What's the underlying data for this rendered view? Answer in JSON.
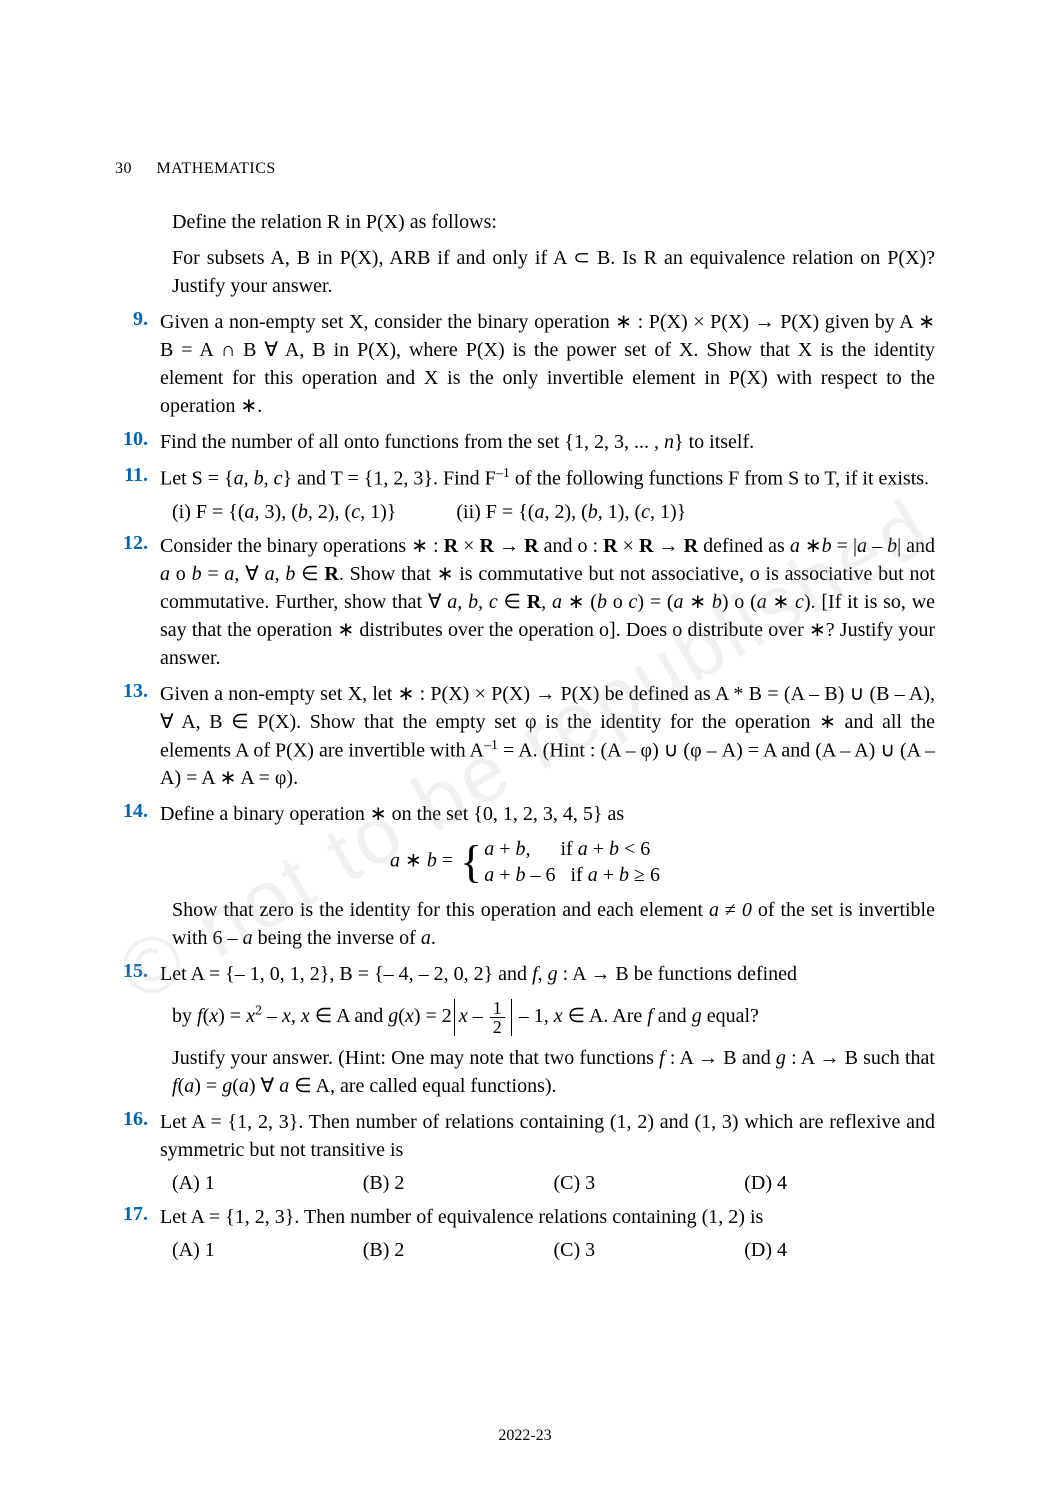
{
  "colors": {
    "question_number": "#0066b3",
    "body_text": "#000000",
    "background": "#ffffff",
    "watermark": "rgba(180,180,180,0.18)"
  },
  "typography": {
    "body_font": "Times New Roman",
    "body_size_pt": 15,
    "header_size_pt": 12,
    "line_height": 1.4
  },
  "header": {
    "page_number": "30",
    "chapter_title": "MATHEMATICS"
  },
  "intro_lines": {
    "l1": "Define the relation R in P(X) as follows:",
    "l2_html": "For subsets A, B in P(X), ARB if and only if A ⊂ B. Is R an equivalence relation on P(X)? Justify your answer."
  },
  "q9": {
    "num": "9.",
    "body_html": "Given a non-empty set X, consider the binary operation ∗ : P(X) × P(X) → P(X) given by A ∗ B = A ∩ B  ∀ A, B in P(X), where P(X) is the power set of X. Show that X is the identity element for this operation and X is the only invertible element in P(X) with respect to the operation ∗."
  },
  "q10": {
    "num": "10.",
    "body_html": "Find the number of all onto functions from the set {1, 2, 3, ... , <span class='ital'>n</span>} to itself."
  },
  "q11": {
    "num": "11.",
    "body_html": "Let S = {<span class='ital'>a</span>, <span class='ital'>b</span>, <span class='ital'>c</span>} and T = {1, 2, 3}. Find F<sup>–1</sup> of the following functions F from S to T, if it exists.",
    "opt_i": "(i)  F = {(<span class='ital'>a</span>, 3), (<span class='ital'>b</span>, 2), (<span class='ital'>c</span>, 1)}",
    "opt_ii": "(ii)  F = {(<span class='ital'>a</span>, 2), (<span class='ital'>b</span>, 1), (<span class='ital'>c</span>, 1)}"
  },
  "q12": {
    "num": "12.",
    "body_html": "Consider the binary operations ∗ : <span class='bold'>R</span> × <span class='bold'>R</span> → <span class='bold'>R</span> and o : <span class='bold'>R</span> × <span class='bold'>R</span> → <span class='bold'>R</span> defined as <span class='ital'>a</span> ∗<span class='ital'>b</span> = |<span class='ital'>a</span> – <span class='ital'>b</span>| and <span class='ital'>a</span> o <span class='ital'>b</span> = <span class='ital'>a</span>,  ∀ <span class='ital'>a</span>, <span class='ital'>b</span> ∈ <span class='bold'>R</span>. Show that ∗ is commutative but not associative, o is associative but not commutative. Further, show that ∀ <span class='ital'>a</span>, <span class='ital'>b</span>, <span class='ital'>c</span> ∈ <span class='bold'>R</span>, <span class='ital'>a</span> ∗ (<span class='ital'>b</span> o <span class='ital'>c</span>) = (<span class='ital'>a</span> ∗ <span class='ital'>b</span>) o (<span class='ital'>a</span> ∗ <span class='ital'>c</span>). [If it is so, we say that the operation ∗ distributes over the operation o]. Does o distribute over ∗? Justify your answer."
  },
  "q13": {
    "num": "13.",
    "body_html": "Given a non-empty set X, let ∗ : P(X) × P(X) → P(X) be defined as A * B = (A – B) ∪ (B – A),  ∀ A, B ∈ P(X). Show that the empty set φ is the identity for the operation ∗ and all the elements A of P(X) are invertible with A<sup>–1</sup> = A. (Hint : (A – φ) ∪ (φ – A) = A and (A – A) ∪ (A – A) = A ∗ A = φ)."
  },
  "q14": {
    "num": "14.",
    "body_html": "Define a binary operation ∗ on the set {0, 1, 2, 3, 4, 5} as",
    "eq_lhs": "<span class='ital'>a</span> ∗ <span class='ital'>b</span> = ",
    "case1": "<span class='ital'>a</span> + <span class='ital'>b</span>, &nbsp;&nbsp;&nbsp;&nbsp; if <span class='ital'>a</span> + <span class='ital'>b</span> &lt; 6",
    "case2": "<span class='ital'>a</span> + <span class='ital'>b</span> – 6 &nbsp; if <span class='ital'>a</span> + <span class='ital'>b</span> ≥ 6",
    "tail_html": "Show that zero is the identity for this operation and each element <span class='ital'>a</span> ≠ <span class='ital'>0</span> of the set is invertible with 6 – <span class='ital'>a</span> being the inverse of <span class='ital'>a</span>."
  },
  "q15": {
    "num": "15.",
    "body_html": "Let A = {– 1, 0, 1, 2}, B = {– 4, – 2, 0, 2} and <span class='ital'>f</span>, <span class='ital'>g</span> : A → B be functions defined",
    "mid_pre": "by <span class='ital'>f</span>(<span class='ital'>x</span>) = <span class='ital'>x</span><sup>2</sup> – <span class='ital'>x</span>, <span class='ital'>x</span> ∈ A and  <span class='ital'>g</span>(<span class='ital'>x</span>) = 2",
    "abs_inner_pre": "<span class='ital'>x</span> – ",
    "frac_num": "1",
    "frac_den": "2",
    "mid_post": " – 1,  <span class='ital'>x</span> ∈ A. Are <span class='ital'>f</span> and <span class='ital'>g</span> equal?",
    "tail_html": "Justify your answer. (Hint: One may note that two functions <span class='ital'>f</span> : A → B and <span class='ital'>g</span> : A → B such that <span class='ital'>f</span>(<span class='ital'>a</span>) = <span class='ital'>g</span>(<span class='ital'>a</span>)  ∀ <span class='ital'>a</span> ∈ A, are called equal functions)."
  },
  "q16": {
    "num": "16.",
    "body_html": "Let A = {1, 2, 3}. Then number of relations containing (1, 2) and (1, 3) which are reflexive and symmetric but not transitive is",
    "opts": {
      "A": "(A)  1",
      "B": "(B)  2",
      "C": "(C)  3",
      "D": "(D)  4"
    }
  },
  "q17": {
    "num": "17.",
    "body_html": "Let A = {1, 2, 3}. Then number of equivalence relations containing (1, 2) is",
    "opts": {
      "A": "(A)  1",
      "B": "(B)  2",
      "C": "(C)  3",
      "D": "(D)  4"
    }
  },
  "footer": {
    "year": "2022-23"
  },
  "watermark_text": "© not to be republished"
}
